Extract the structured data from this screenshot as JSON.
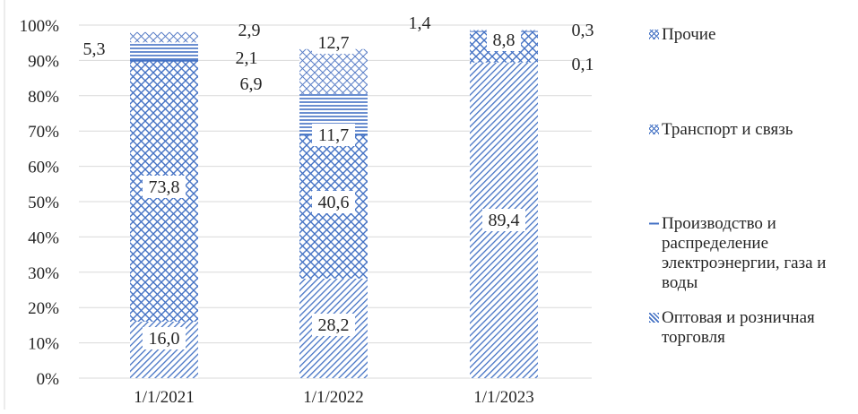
{
  "chart_data": {
    "type": "bar",
    "stacked": true,
    "percent_axis": true,
    "categories": [
      "1/1/2021",
      "1/1/2022",
      "1/1/2023"
    ],
    "series": [
      {
        "name": "Оптовая и розничная торговля",
        "values": [
          16.0,
          28.2,
          89.4
        ],
        "labels": [
          "16,0",
          "28,2",
          "89,4"
        ],
        "pattern": "diag-lines"
      },
      {
        "name": "Транспорт и связь",
        "values": [
          73.8,
          40.6,
          8.8
        ],
        "labels": [
          "73,8",
          "40,6",
          "8,8"
        ],
        "pattern": "cross-hatch"
      },
      {
        "name": "Производство и распределение электроэнергии, газа и воды",
        "values": [
          5.3,
          11.7,
          0.1
        ],
        "labels": [
          "5,3",
          "11,7",
          "0,1"
        ],
        "pattern": "horizontal"
      },
      {
        "name": "Прочие",
        "values": [
          2.9,
          12.7,
          0.3
        ],
        "labels": [
          "2,9",
          "12,7",
          "0,3"
        ],
        "pattern": "cross-hatch-light"
      }
    ],
    "extra_labels": [
      {
        "category_index": 0,
        "text": "2,1"
      },
      {
        "category_index": 1,
        "text": "6,9"
      },
      {
        "category_index": 2,
        "text": "1,4"
      }
    ],
    "y_ticks": [
      "0%",
      "10%",
      "20%",
      "30%",
      "40%",
      "50%",
      "60%",
      "70%",
      "80%",
      "90%",
      "100%"
    ],
    "ylim": [
      0,
      100
    ],
    "grid": true,
    "legend_position": "right",
    "colors": {
      "bar": "#4472c4",
      "grid": "#d9d9d9",
      "text": "#262626"
    }
  },
  "legend": [
    {
      "key": "prochie",
      "label": "Прочие",
      "pattern": "cross-hatch-light"
    },
    {
      "key": "transport",
      "label": "Транспорт и связь",
      "pattern": "cross-hatch"
    },
    {
      "key": "energy",
      "label": "Производство и распределение электроэнергии, газа и воды",
      "pattern": "horizontal"
    },
    {
      "key": "trade",
      "label": "Оптовая и розничная торговля",
      "pattern": "diag-lines"
    }
  ]
}
